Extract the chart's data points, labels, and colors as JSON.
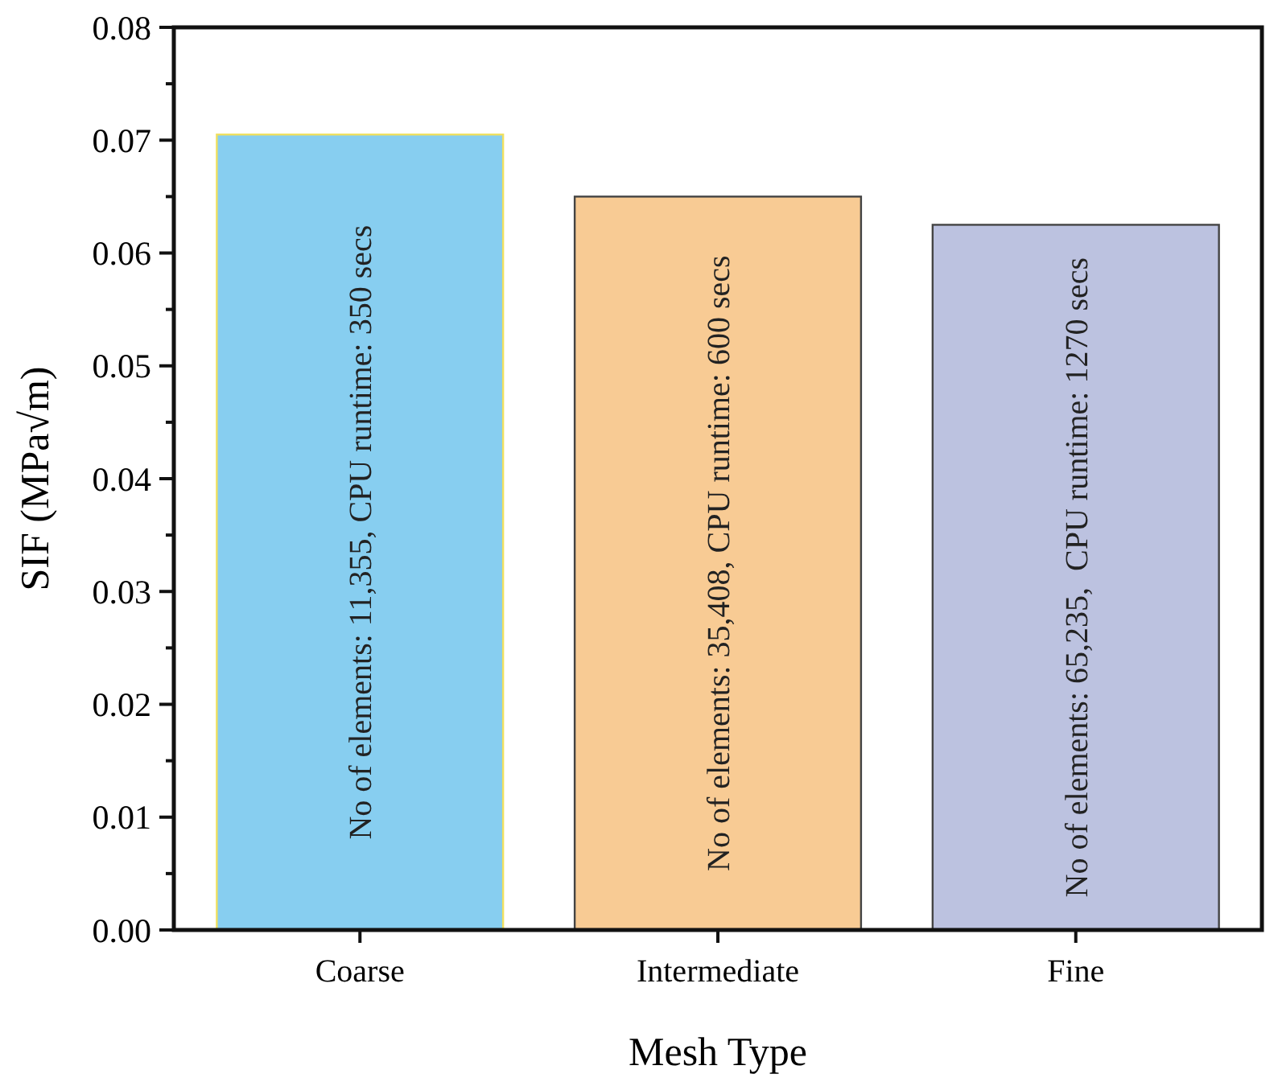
{
  "chart_data": {
    "type": "bar",
    "xlabel": "Mesh Type",
    "ylabel": "SIF (MPa√m)",
    "categories": [
      "Coarse",
      "Intermediate",
      "Fine"
    ],
    "values": [
      0.0705,
      0.065,
      0.0625
    ],
    "colors": [
      "#87cef0",
      "#f8cb94",
      "#bcc2e0"
    ],
    "ylim": [
      0,
      0.08
    ],
    "yticks": [
      {
        "value": 0,
        "label": "0.00"
      },
      {
        "value": 0.005,
        "label": null
      },
      {
        "value": 0.01,
        "label": "0.01"
      },
      {
        "value": 0.015,
        "label": null
      },
      {
        "value": 0.02,
        "label": "0.02"
      },
      {
        "value": 0.025,
        "label": null
      },
      {
        "value": 0.03,
        "label": "0.03"
      },
      {
        "value": 0.035,
        "label": null
      },
      {
        "value": 0.04,
        "label": "0.04"
      },
      {
        "value": 0.045,
        "label": null
      },
      {
        "value": 0.05,
        "label": "0.05"
      },
      {
        "value": 0.055,
        "label": null
      },
      {
        "value": 0.06,
        "label": "0.06"
      },
      {
        "value": 0.065,
        "label": null
      },
      {
        "value": 0.07,
        "label": "0.07"
      },
      {
        "value": 0.075,
        "label": null
      },
      {
        "value": 0.08,
        "label": "0.08"
      }
    ],
    "annotations": [
      "No of elements: 11,355, CPU runtime: 350 secs",
      "No of elements: 35,408, CPU runtime: 600 secs",
      "No of elements: 65,235,  CPU runtime: 1270 secs"
    ],
    "grid": false
  }
}
